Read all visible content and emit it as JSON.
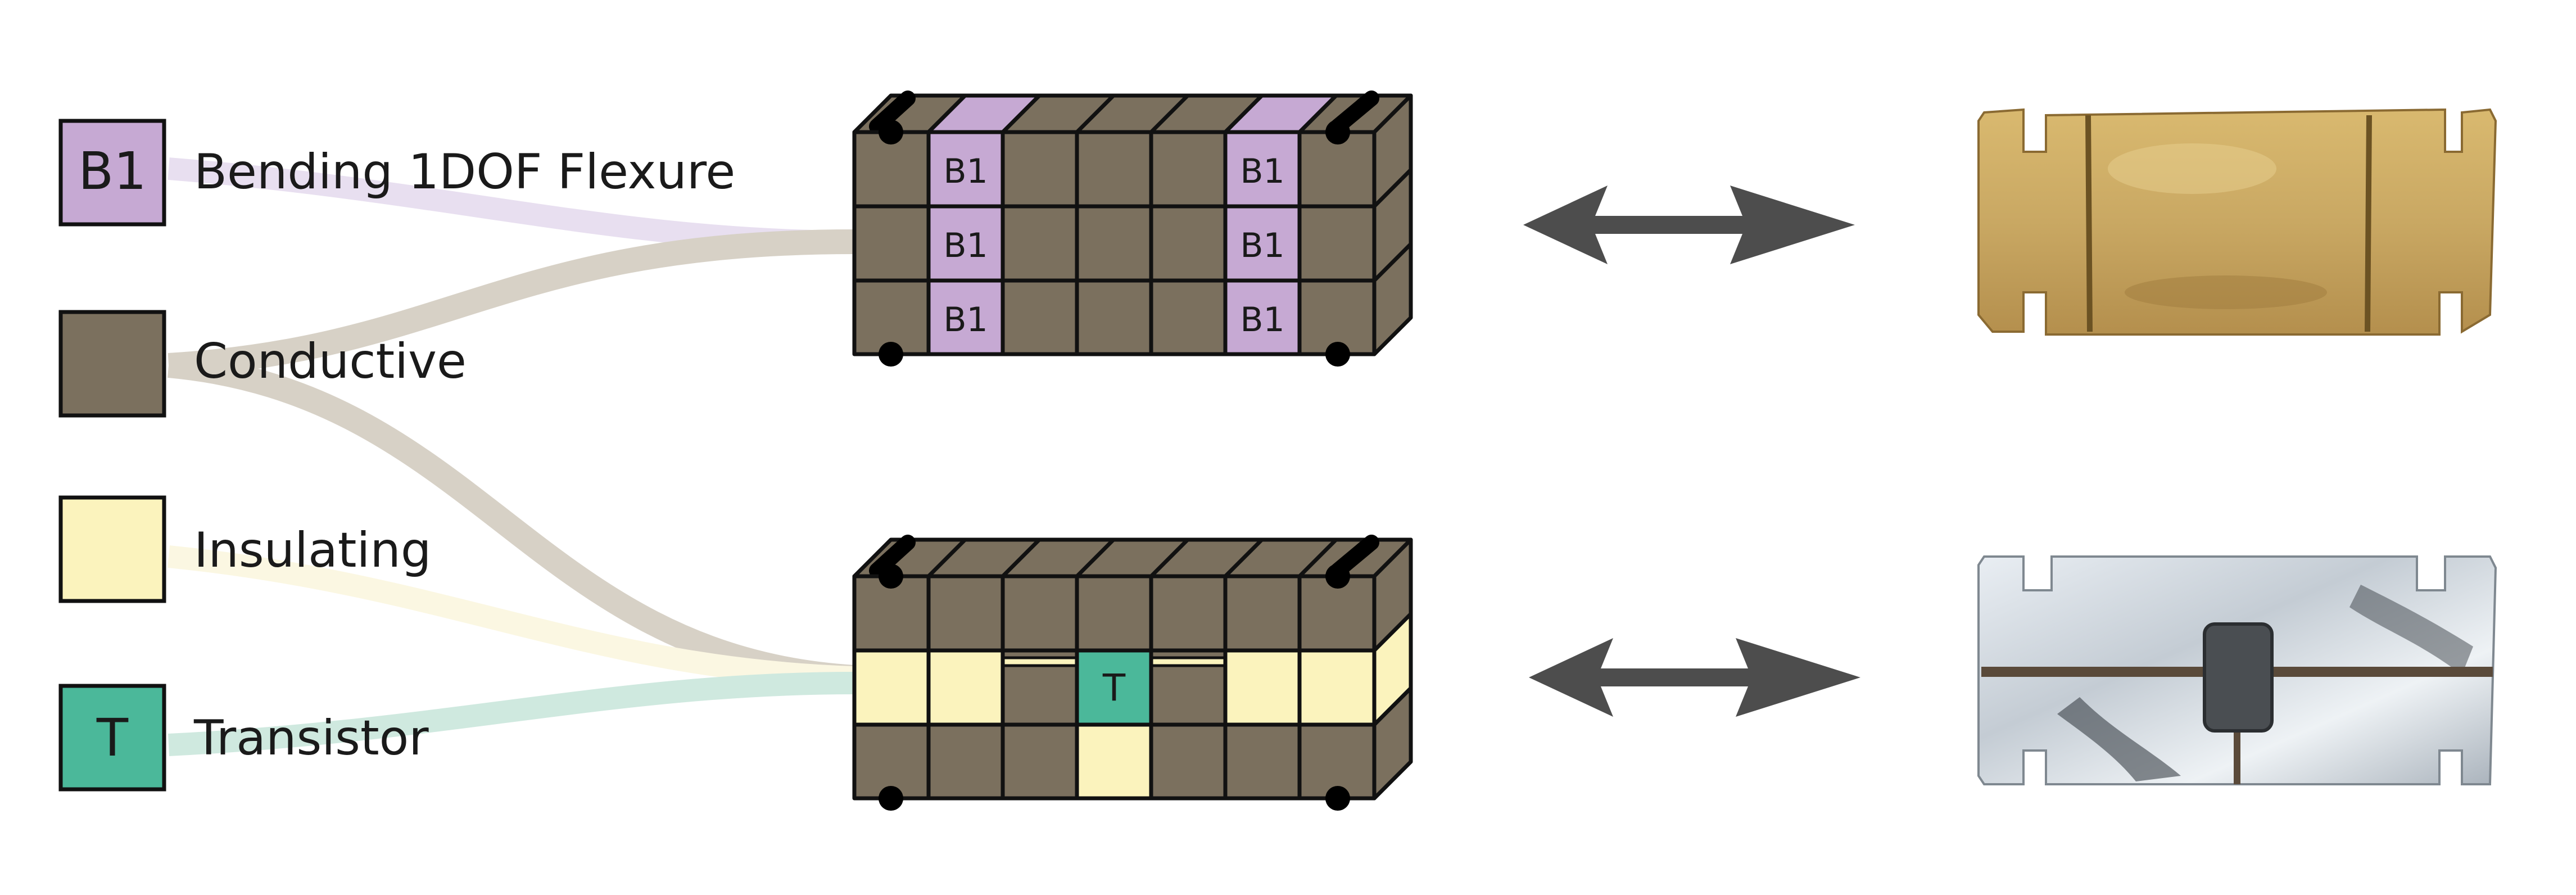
{
  "legend": {
    "flexure": {
      "symbol": "B1",
      "label": "Bending 1DOF Flexure",
      "color": "#c6a9d3"
    },
    "conductive": {
      "symbol": "",
      "label": "Conductive",
      "color": "#7b705e"
    },
    "insulating": {
      "symbol": "",
      "label": "Insulating",
      "color": "#fbf3bd"
    },
    "transistor": {
      "symbol": "T",
      "label": "Transistor",
      "color": "#4bb89a"
    }
  },
  "modules": {
    "top": {
      "cell_label": "B1"
    },
    "bottom": {
      "cell_label": "T"
    }
  },
  "colors": {
    "outline": "#111111",
    "arrow": "#4d4d4d",
    "flow_flexure": "#e8dff0",
    "flow_conductive": "#d7d1c6",
    "flow_insulating": "#fbf7e2",
    "flow_transistor": "#cfe9df"
  },
  "photos": {
    "top": {
      "description": "gold flexure part"
    },
    "bottom": {
      "description": "silver part with transistor"
    }
  }
}
